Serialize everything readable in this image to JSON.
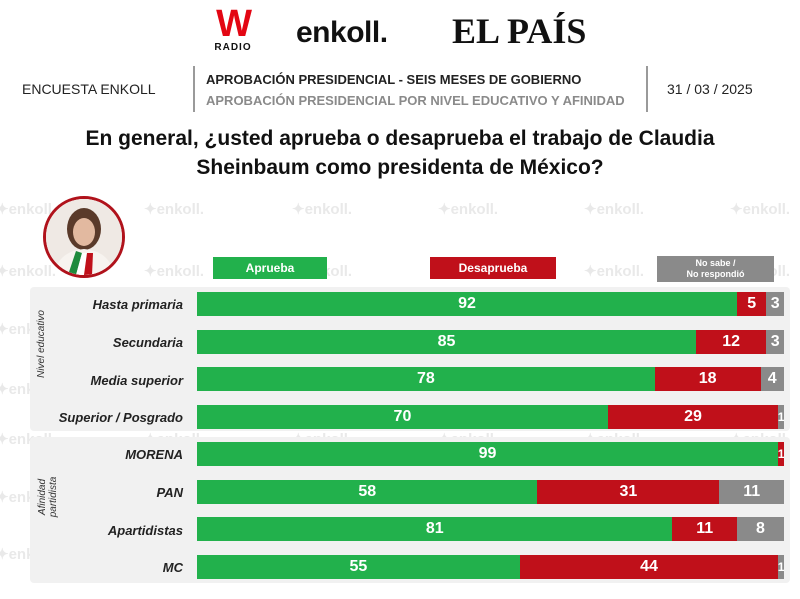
{
  "header": {
    "logo_w": "W",
    "logo_w_sub": "RADIO",
    "logo_enkoll": "enkoll.",
    "logo_pais": "EL PAÍS",
    "survey_name": "ENCUESTA ENKOLL",
    "title_main": "APROBACIÓN PRESIDENCIAL - SEIS MESES DE GOBIERNO",
    "title_sub": "APROBACIÓN PRESIDENCIAL POR NIVEL EDUCATIVO Y AFINIDAD",
    "date": "31 / 03 / 2025"
  },
  "question_line1": "En general, ¿usted aprueba o desaprueba el trabajo de Claudia",
  "question_line2": "Sheinbaum como presidenta de México?",
  "watermark_text": "enkoll.",
  "colors": {
    "aprueba": "#22b14c",
    "desaprueba": "#c0101a",
    "no_sabe": "#8a8a8a",
    "accent_red": "#e30613"
  },
  "legend": {
    "aprueba": "Aprueba",
    "desaprueba": "Desaprueba",
    "no_sabe_line1": "No sabe  /",
    "no_sabe_line2": "No respondió"
  },
  "groups": {
    "nivel_educativo": "Nivel educativo",
    "afinidad_line1": "Afinidad",
    "afinidad_line2": "partidista"
  },
  "chart_data": {
    "type": "bar",
    "orientation": "horizontal",
    "stacked": true,
    "categories": [
      "Hasta primaria",
      "Secundaria",
      "Media superior",
      "Superior / Posgrado",
      "MORENA",
      "PAN",
      "Apartidistas",
      "MC"
    ],
    "series": [
      {
        "name": "Aprueba",
        "values": [
          92,
          85,
          78,
          70,
          99,
          58,
          81,
          55
        ]
      },
      {
        "name": "Desaprueba",
        "values": [
          5,
          12,
          18,
          29,
          1,
          31,
          11,
          44
        ]
      },
      {
        "name": "No sabe / No respondió",
        "values": [
          3,
          3,
          4,
          1,
          0,
          11,
          8,
          1
        ]
      }
    ],
    "labels": [
      [
        "92",
        "5",
        "3"
      ],
      [
        "85",
        "12",
        "3"
      ],
      [
        "78",
        "18",
        "4"
      ],
      [
        "70",
        "29",
        "1"
      ],
      [
        "99",
        "1",
        ""
      ],
      [
        "58",
        "31",
        "11"
      ],
      [
        "81",
        "11",
        "8"
      ],
      [
        "55",
        "44",
        "1"
      ]
    ],
    "xlim": [
      0,
      100
    ],
    "legend_position": "top"
  }
}
